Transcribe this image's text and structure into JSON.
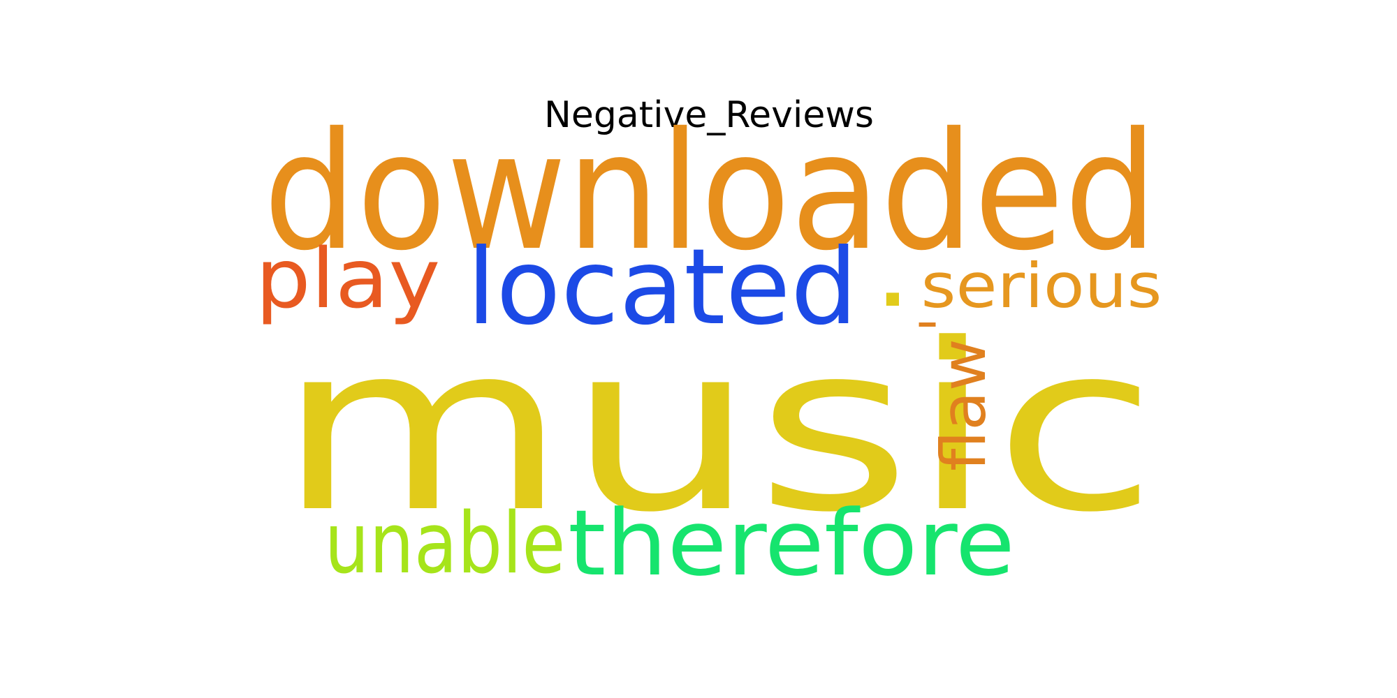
{
  "chart_data": {
    "type": "wordcloud",
    "title": "Negative_Reviews",
    "words": [
      {
        "text": "music",
        "weight": 1.0,
        "color": "#e1cb1a",
        "orientation": "horizontal"
      },
      {
        "text": "downloaded",
        "weight": 0.72,
        "color": "#e78f1c",
        "orientation": "horizontal"
      },
      {
        "text": "located",
        "weight": 0.52,
        "color": "#1c4ae6",
        "orientation": "horizontal"
      },
      {
        "text": "therefore",
        "weight": 0.5,
        "color": "#16e46e",
        "orientation": "horizontal"
      },
      {
        "text": "unable",
        "weight": 0.46,
        "color": "#a6e41a",
        "orientation": "horizontal"
      },
      {
        "text": "play",
        "weight": 0.42,
        "color": "#e85a21",
        "orientation": "horizontal"
      },
      {
        "text": "serious",
        "weight": 0.34,
        "color": "#e6971f",
        "orientation": "horizontal"
      },
      {
        "text": "flaw",
        "weight": 0.34,
        "color": "#e0801f",
        "orientation": "vertical"
      },
      {
        "text": ".",
        "weight": 0.3,
        "color": "#e1cb1a",
        "orientation": "horizontal"
      },
      {
        "text": "'",
        "weight": 0.25,
        "color": "#e0801f",
        "orientation": "vertical"
      }
    ]
  }
}
